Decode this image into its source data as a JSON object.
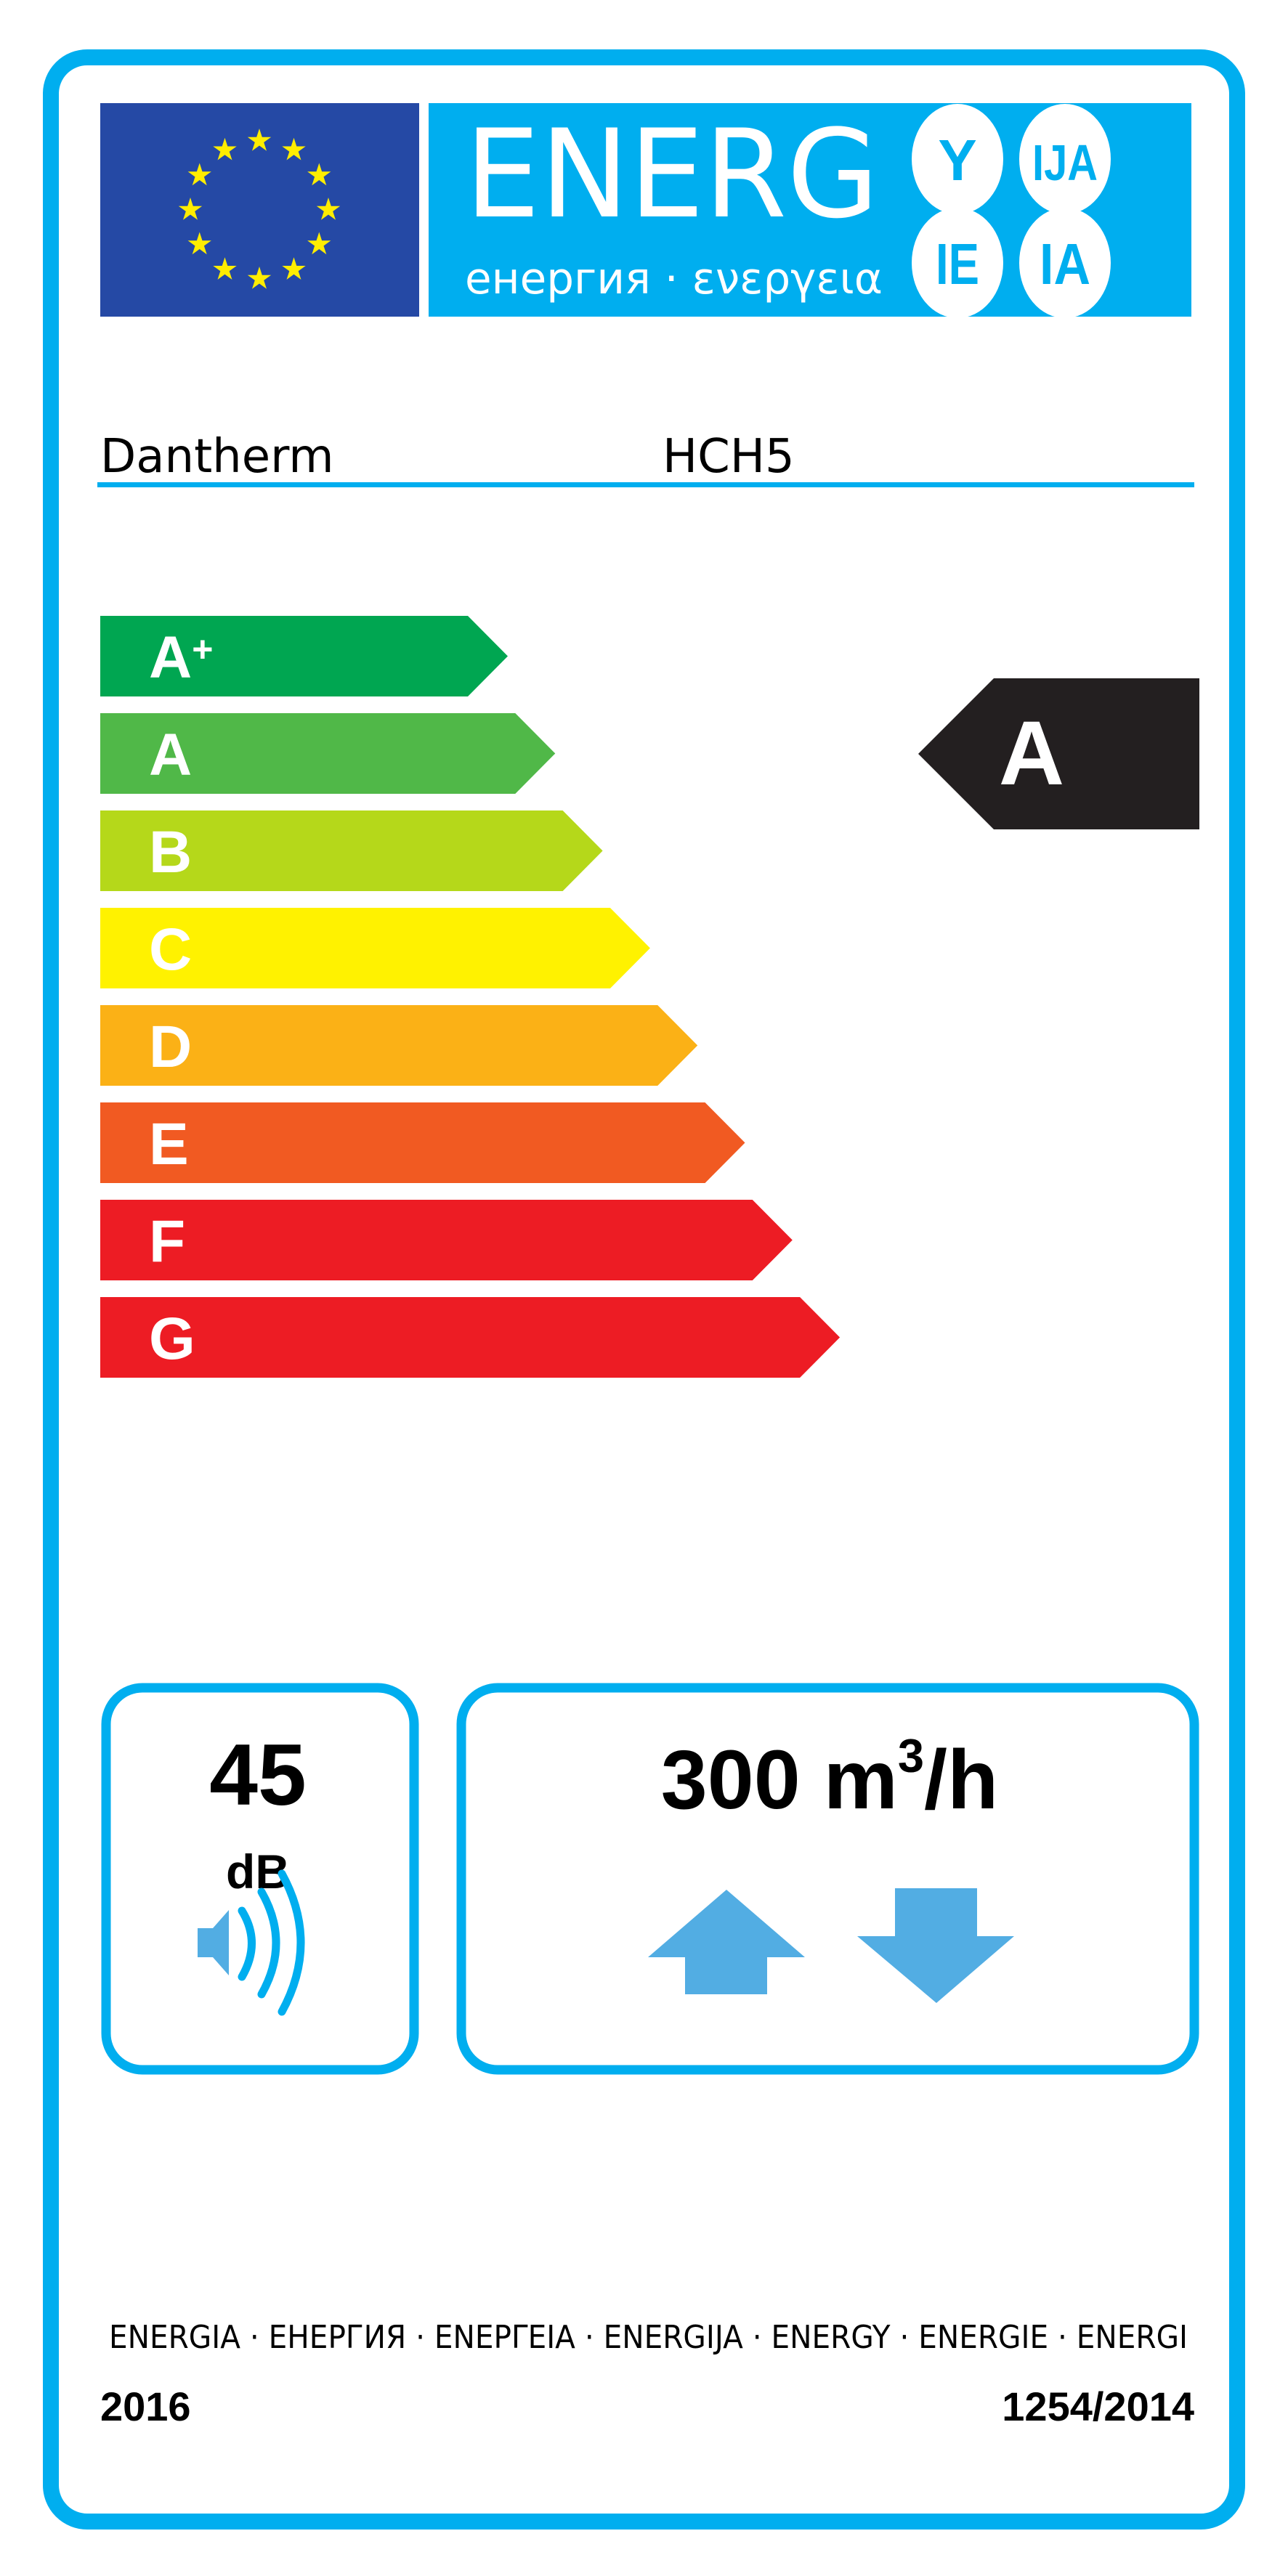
{
  "header": {
    "energy_word": "ENERG",
    "subtitle": "енергия · ενεργεια",
    "suffixes": [
      "Y",
      "IJA",
      "IE",
      "IA"
    ],
    "flag_stars": 12
  },
  "product": {
    "supplier": "Dantherm",
    "model": "HCH5"
  },
  "scale": {
    "classes": [
      {
        "label": "A+",
        "color": "#00a651"
      },
      {
        "label": "A",
        "color": "#50b848"
      },
      {
        "label": "B",
        "color": "#b5d81a"
      },
      {
        "label": "C",
        "color": "#fff200"
      },
      {
        "label": "D",
        "color": "#fbb116"
      },
      {
        "label": "E",
        "color": "#f15a22"
      },
      {
        "label": "F",
        "color": "#ed1c24"
      },
      {
        "label": "G",
        "color": "#ed1c24"
      }
    ],
    "rating": "A",
    "rating_color": "#231f20"
  },
  "noise": {
    "value": "45",
    "unit": "dB",
    "icon": "speaker-sound-icon"
  },
  "airflow": {
    "value": "300 m",
    "superscript": "3",
    "unit_suffix": "/h",
    "icons": [
      "arrow-up-icon",
      "arrow-down-icon"
    ]
  },
  "footer": {
    "languages": "ENERGIA · ЕНЕРГИЯ · ΕΝΕΡΓΕΙΑ · ENERGIJA · ENERGY · ENERGIE · ENERGI",
    "year": "2016",
    "regulation": "1254/2014"
  },
  "colors": {
    "border": "#00aeef",
    "eu_blue": "#2549a5",
    "eu_star": "#ffed00",
    "icon_blue": "#52ade3"
  }
}
